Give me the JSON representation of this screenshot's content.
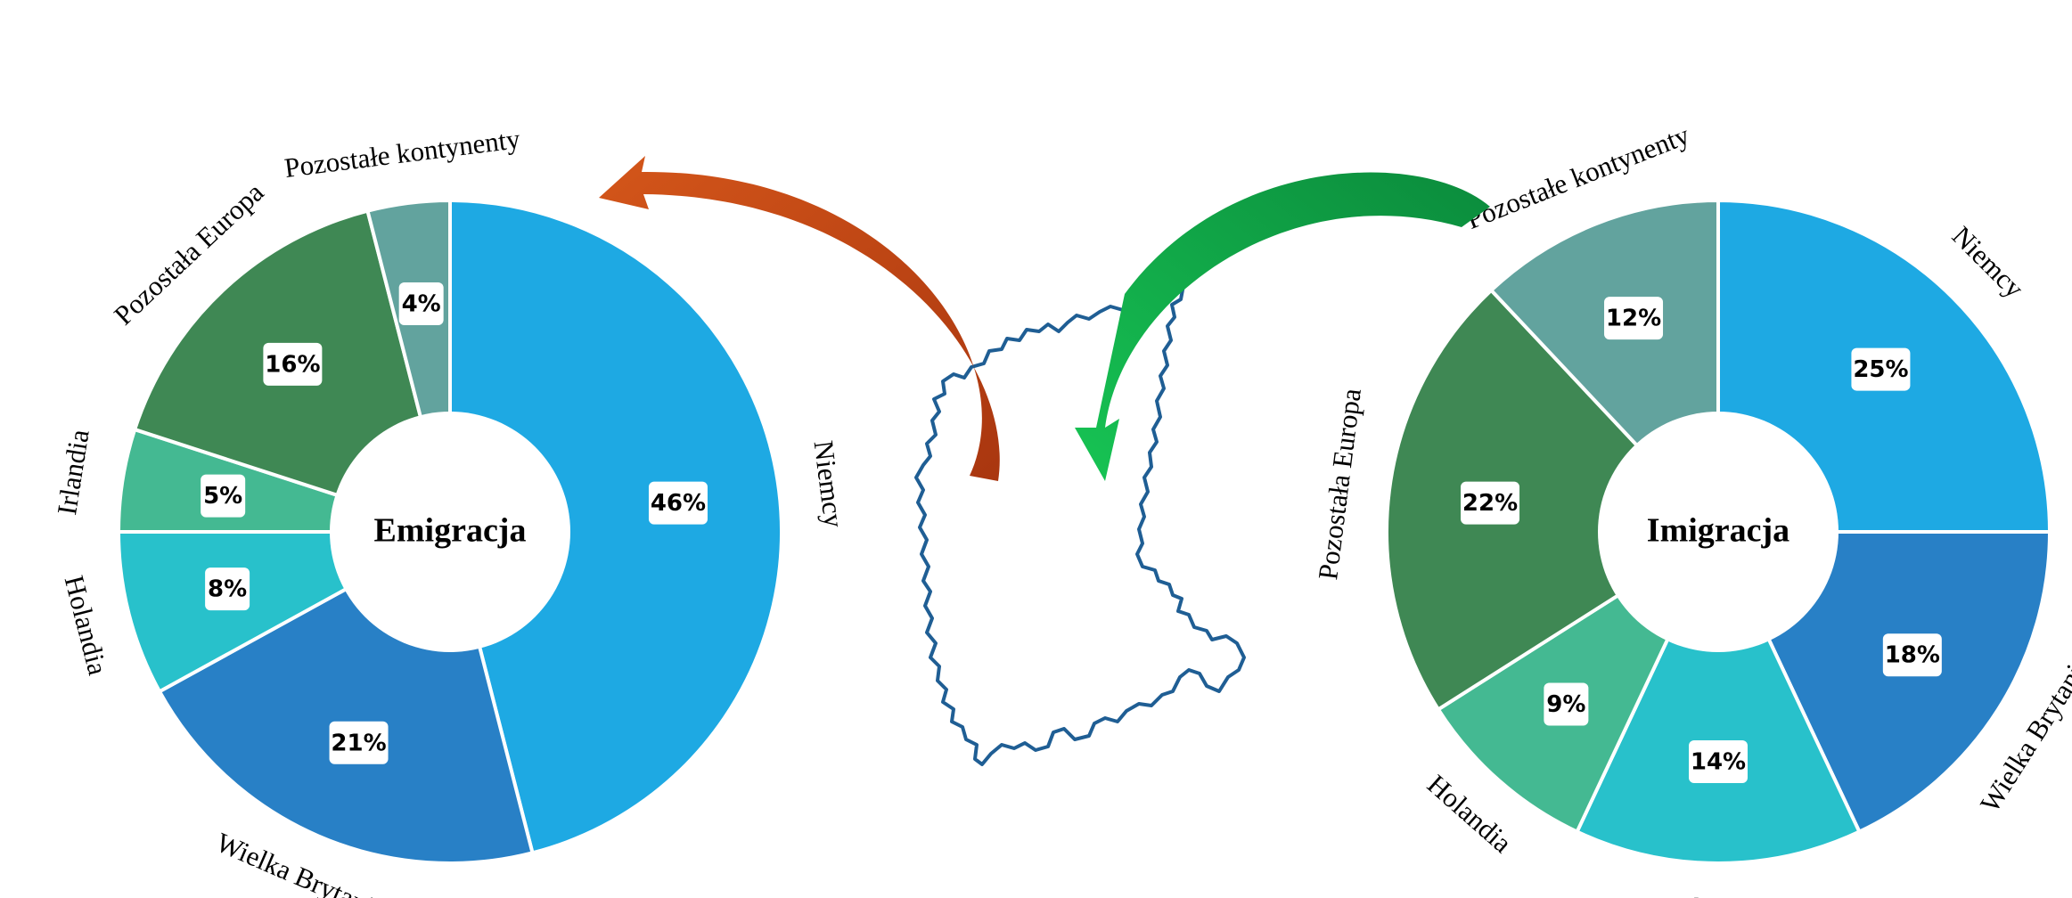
{
  "chart_data": [
    {
      "type": "pie",
      "title": "Emigracja",
      "categories": [
        "Niemcy",
        "Wielka Brytania",
        "Holandia",
        "Irlandia",
        "Pozostała Europa",
        "Pozostałe kontynenty"
      ],
      "values": [
        46,
        21,
        8,
        5,
        16,
        4
      ],
      "value_labels": [
        "46%",
        "21%",
        "8%",
        "5%",
        "16%",
        "4%"
      ],
      "colors": [
        "#1ea9e3",
        "#2880c6",
        "#28c1cb",
        "#44b992",
        "#3f8854",
        "#62a39e"
      ]
    },
    {
      "type": "pie",
      "title": "Imigracja",
      "categories": [
        "Niemcy",
        "Wielka Brytania",
        "Ukraina",
        "Holandia",
        "Pozostała Europa",
        "Pozostałe kontynenty"
      ],
      "values": [
        25,
        18,
        14,
        9,
        22,
        12
      ],
      "value_labels": [
        "25%",
        "18%",
        "14%",
        "9%",
        "22%",
        "12%"
      ],
      "colors": [
        "#1ea9e3",
        "#2880c6",
        "#28c1cb",
        "#44b992",
        "#3f8854",
        "#62a39e"
      ]
    }
  ],
  "arrows": {
    "emigration_color": "#d65a1e",
    "immigration_color": "#12a24a"
  },
  "map": {
    "outline_color": "#1f5e94"
  }
}
